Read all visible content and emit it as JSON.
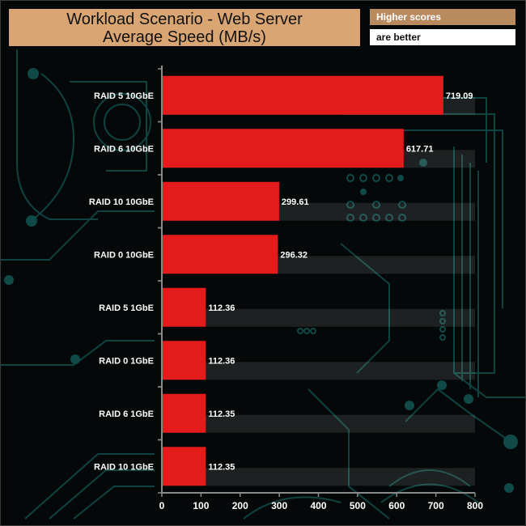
{
  "header": {
    "title_line1": "Workload Scenario - Web Server",
    "title_line2": "Average Speed (MB/s)",
    "note_line1": "Higher scores",
    "note_line2": "are better"
  },
  "colors": {
    "bar": "#e31b1b",
    "title_bg": "#d9a673",
    "note_bg": "#b88a5e",
    "circuit": "#0f4a48"
  },
  "chart_data": {
    "type": "bar",
    "orientation": "horizontal",
    "title": "Workload Scenario - Web Server Average Speed (MB/s)",
    "categories": [
      "RAID 5 10GbE",
      "RAID 6 10GbE",
      "RAID 10 10GbE",
      "RAID 0 10GbE",
      "RAID 5 1GbE",
      "RAID 0 1GbE",
      "RAID 6 1GbE",
      "RAID 10 1GbE"
    ],
    "values": [
      719.09,
      617.71,
      299.61,
      296.32,
      112.36,
      112.36,
      112.35,
      112.35
    ],
    "value_labels": [
      "719.09",
      "617.71",
      "299.61",
      "296.32",
      "112.36",
      "112.36",
      "112.35",
      "112.35"
    ],
    "xlim": [
      0,
      800
    ],
    "xticks": [
      0,
      100,
      200,
      300,
      400,
      500,
      600,
      700,
      800
    ],
    "xtick_labels": [
      "0",
      "100",
      "200",
      "300",
      "400",
      "500",
      "600",
      "700",
      "800"
    ],
    "xlabel": "",
    "ylabel": "",
    "legend": "none"
  }
}
